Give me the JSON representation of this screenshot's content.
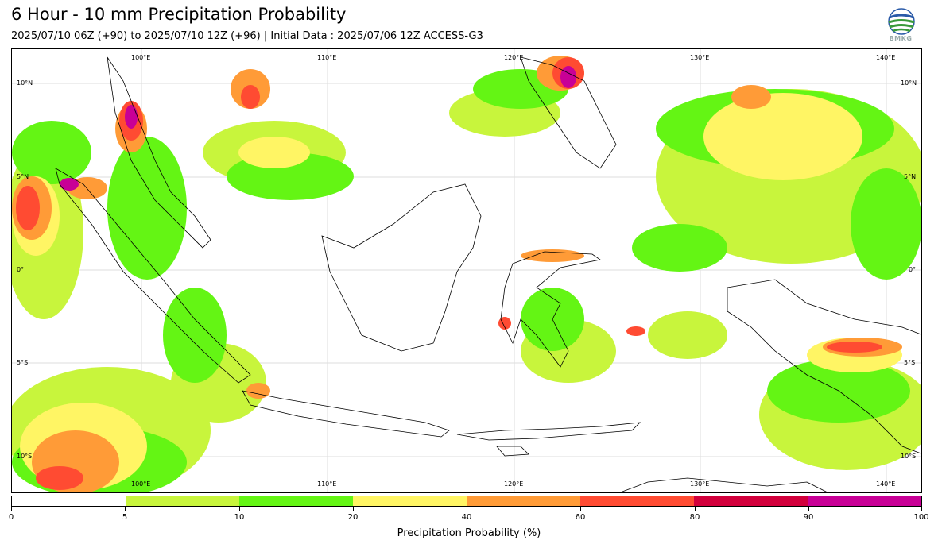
{
  "header": {
    "title": "6 Hour - 10 mm Precipitation Probability",
    "subtitle": "2025/07/10 06Z (+90) to 2025/07/10 12Z (+96) | Initial Data : 2025/07/06 12Z ACCESS-G3",
    "logo_text": "BMKG"
  },
  "map": {
    "lon_range": [
      95,
      144
    ],
    "lat_range": [
      -12,
      12
    ],
    "lon_labels_top": [
      "100°E",
      "110°E",
      "120°E",
      "130°E",
      "140°E"
    ],
    "lon_labels_bottom": [
      "100°E",
      "110°E",
      "120°E",
      "130°E",
      "140°E"
    ],
    "lat_labels_left": [
      "10°N",
      "5°N",
      "0°",
      "5°S",
      "10°S"
    ],
    "lat_labels_right": [
      "10°N",
      "5°N",
      "0°",
      "5°S",
      "10°S"
    ],
    "gridlines": true
  },
  "colorbar": {
    "label": "Precipitation Probability (%)",
    "ticks": [
      "0",
      "5",
      "10",
      "20",
      "40",
      "60",
      "80",
      "90",
      "100"
    ],
    "colors": [
      "#ffffff",
      "#c8f53c",
      "#64f514",
      "#fff564",
      "#ff9b37",
      "#ff4b32",
      "#d2003c",
      "#c80096"
    ]
  }
}
